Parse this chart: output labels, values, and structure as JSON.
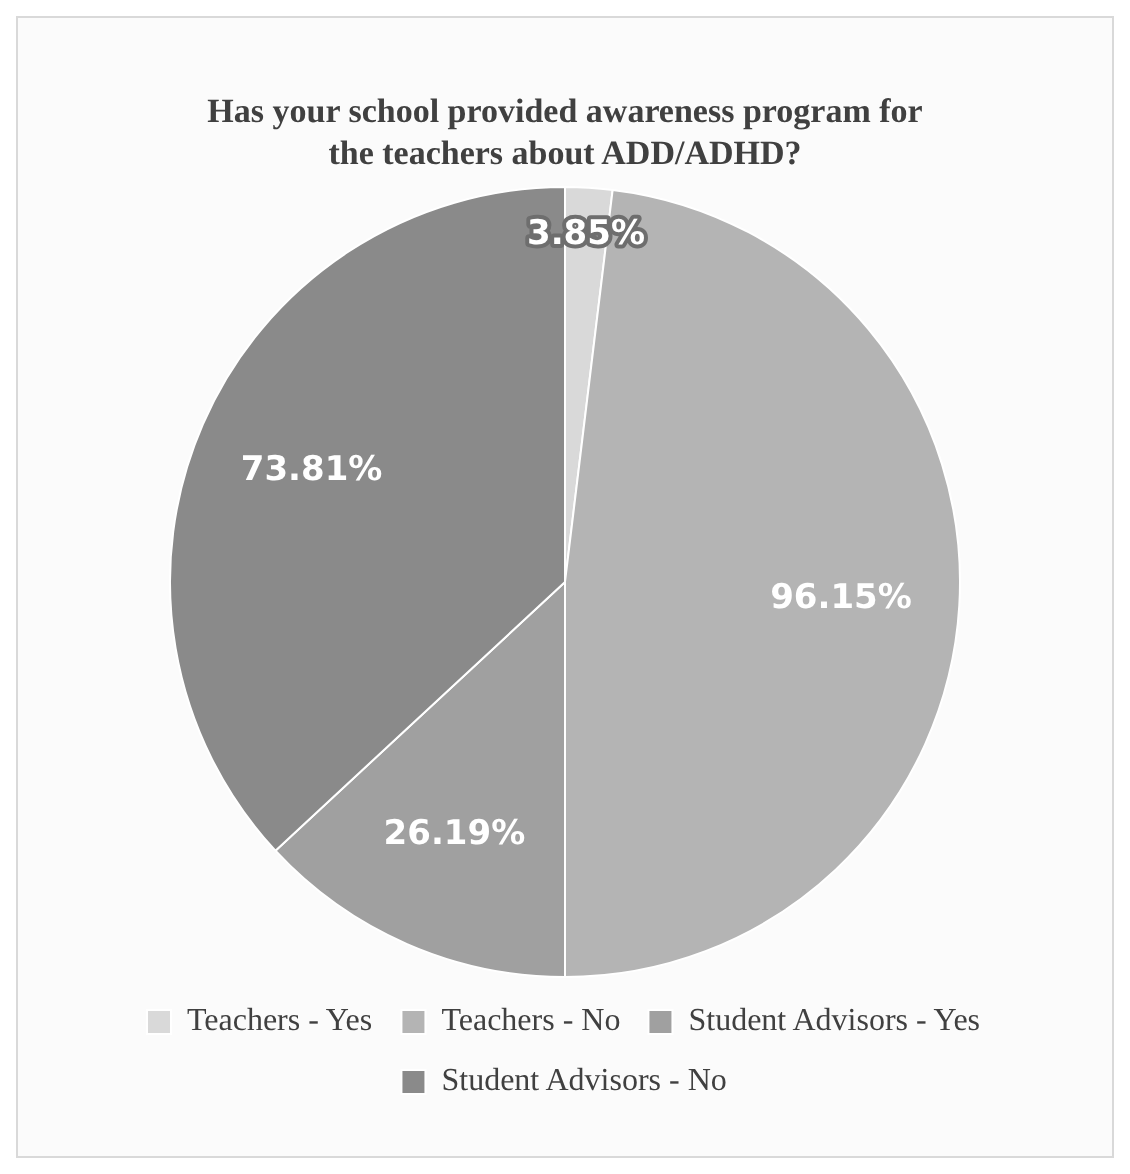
{
  "chart_data": {
    "type": "pie",
    "title": "Has your school provided awareness program for the teachers about ADD/ADHD?",
    "categories": [
      "Teachers - Yes",
      "Teachers - No",
      "Student Advisors - Yes",
      "Student Advisors - No"
    ],
    "values": [
      3.85,
      96.15,
      26.19,
      73.81
    ],
    "value_labels": [
      "3.85%",
      "96.15%",
      "26.19%",
      "73.81%"
    ],
    "colors": [
      "#d9d9d9",
      "#b4b4b4",
      "#a0a0a0",
      "#8a8a8a"
    ],
    "legend": "bottom"
  }
}
